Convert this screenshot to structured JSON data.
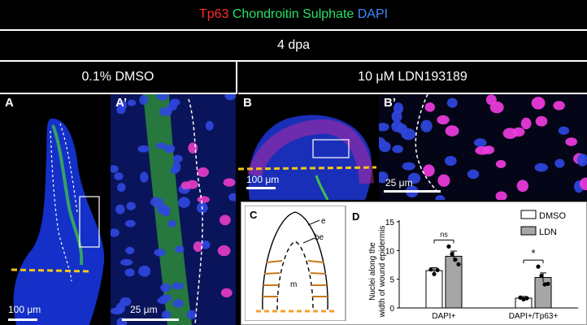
{
  "header": {
    "stains": [
      {
        "label": "Tp63",
        "color": "#ff2a2a"
      },
      {
        "label": "Chondroitin Sulphate",
        "color": "#27e06a"
      },
      {
        "label": "DAPI",
        "color": "#3a8dff"
      }
    ],
    "timepoint": "4 dpa",
    "conditions": [
      "0.1% DMSO",
      "10 μM LDN193189"
    ]
  },
  "panels": {
    "A": {
      "label": "A",
      "scale": "100 μm"
    },
    "A2": {
      "label": "A’",
      "scale": "25 μm"
    },
    "B": {
      "label": "B",
      "scale": "100 μm"
    },
    "B2": {
      "label": "B’",
      "scale": "25 μm"
    },
    "C": {
      "label": "C",
      "e": "e",
      "be": "be",
      "m": "m"
    },
    "D": {
      "label": "D"
    }
  },
  "chart_data": {
    "type": "bar",
    "categories": [
      "DAPI+",
      "DAPI+/Tp63+"
    ],
    "series": [
      {
        "name": "DMSO",
        "values": [
          6.5,
          1.7
        ],
        "errors": [
          0.5,
          0.3
        ],
        "points": [
          [
            6.7,
            5.9,
            6.6
          ],
          [
            1.8,
            1.5,
            1.7
          ]
        ],
        "color": "#ffffff"
      },
      {
        "name": "LDN",
        "values": [
          9.0,
          5.3
        ],
        "errors": [
          0.9,
          0.8
        ],
        "points": [
          [
            10.7,
            9.4,
            8.4,
            7.6
          ],
          [
            7.2,
            5.6,
            4.1,
            4.2
          ]
        ],
        "color": "#a6a6a6"
      }
    ],
    "ylabel": "Nuclei along the width of wound epidermis",
    "ylim": [
      0,
      15
    ],
    "yticks": [
      0,
      5,
      10,
      15
    ],
    "significance": [
      "ns",
      "*"
    ],
    "legend": "top-right"
  }
}
